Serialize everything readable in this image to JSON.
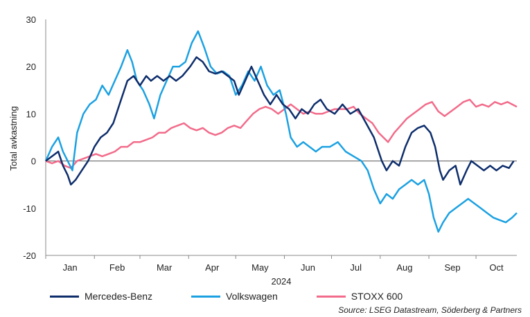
{
  "chart_data": {
    "type": "line",
    "ylabel": "Total avkastning",
    "xlabel": "2024",
    "ylim": [
      -20,
      30
    ],
    "yticks": [
      30,
      20,
      10,
      0,
      -10,
      -20
    ],
    "month_labels": [
      "Jan",
      "Feb",
      "Mar",
      "Apr",
      "May",
      "Jun",
      "Jul",
      "Aug",
      "Sep",
      "Oct"
    ],
    "grid": false,
    "legend_position": "bottom",
    "source": "Source: LSEG Datastream, Söderberg & Partners",
    "series": [
      {
        "name": "Mercedes-Benz",
        "color": "#0d2d6b",
        "points": [
          [
            "2024-01-01",
            0
          ],
          [
            "2024-01-05",
            1
          ],
          [
            "2024-01-09",
            2
          ],
          [
            "2024-01-12",
            -1
          ],
          [
            "2024-01-15",
            -3
          ],
          [
            "2024-01-17",
            -5
          ],
          [
            "2024-01-20",
            -4
          ],
          [
            "2024-01-24",
            -2
          ],
          [
            "2024-01-28",
            0
          ],
          [
            "2024-02-01",
            3
          ],
          [
            "2024-02-05",
            5
          ],
          [
            "2024-02-09",
            6
          ],
          [
            "2024-02-13",
            8
          ],
          [
            "2024-02-17",
            12
          ],
          [
            "2024-02-22",
            17
          ],
          [
            "2024-02-26",
            18
          ],
          [
            "2024-03-01",
            16
          ],
          [
            "2024-03-05",
            18
          ],
          [
            "2024-03-08",
            17
          ],
          [
            "2024-03-12",
            18
          ],
          [
            "2024-03-16",
            17
          ],
          [
            "2024-03-20",
            18
          ],
          [
            "2024-03-24",
            17
          ],
          [
            "2024-03-28",
            18
          ],
          [
            "2024-04-02",
            20
          ],
          [
            "2024-04-06",
            22
          ],
          [
            "2024-04-10",
            21
          ],
          [
            "2024-04-14",
            19
          ],
          [
            "2024-04-18",
            18.5
          ],
          [
            "2024-04-22",
            19
          ],
          [
            "2024-04-26",
            18
          ],
          [
            "2024-04-30",
            17
          ],
          [
            "2024-05-03",
            14
          ],
          [
            "2024-05-07",
            17
          ],
          [
            "2024-05-11",
            20
          ],
          [
            "2024-05-15",
            17
          ],
          [
            "2024-05-19",
            14
          ],
          [
            "2024-05-23",
            12
          ],
          [
            "2024-05-27",
            14
          ],
          [
            "2024-05-31",
            12
          ],
          [
            "2024-06-04",
            11
          ],
          [
            "2024-06-08",
            9
          ],
          [
            "2024-06-12",
            11
          ],
          [
            "2024-06-16",
            10
          ],
          [
            "2024-06-20",
            12
          ],
          [
            "2024-06-24",
            13
          ],
          [
            "2024-06-28",
            11
          ],
          [
            "2024-07-03",
            10
          ],
          [
            "2024-07-08",
            12
          ],
          [
            "2024-07-13",
            10
          ],
          [
            "2024-07-18",
            11
          ],
          [
            "2024-07-23",
            8
          ],
          [
            "2024-07-28",
            5
          ],
          [
            "2024-08-02",
            0
          ],
          [
            "2024-08-05",
            -2
          ],
          [
            "2024-08-09",
            0
          ],
          [
            "2024-08-13",
            -1
          ],
          [
            "2024-08-17",
            3
          ],
          [
            "2024-08-21",
            6
          ],
          [
            "2024-08-25",
            7
          ],
          [
            "2024-08-29",
            7.5
          ],
          [
            "2024-09-02",
            6
          ],
          [
            "2024-09-05",
            3
          ],
          [
            "2024-09-08",
            -2
          ],
          [
            "2024-09-10",
            -4
          ],
          [
            "2024-09-14",
            -2
          ],
          [
            "2024-09-18",
            -1
          ],
          [
            "2024-09-21",
            -5
          ],
          [
            "2024-09-25",
            -2
          ],
          [
            "2024-09-28",
            0
          ],
          [
            "2024-10-02",
            -1
          ],
          [
            "2024-10-06",
            -2
          ],
          [
            "2024-10-10",
            -1
          ],
          [
            "2024-10-14",
            -2
          ],
          [
            "2024-10-18",
            -1
          ],
          [
            "2024-10-22",
            -1.5
          ],
          [
            "2024-10-25",
            0
          ]
        ]
      },
      {
        "name": "Volkswagen",
        "color": "#1ba1e2",
        "points": [
          [
            "2024-01-01",
            0
          ],
          [
            "2024-01-05",
            3
          ],
          [
            "2024-01-09",
            5
          ],
          [
            "2024-01-12",
            2
          ],
          [
            "2024-01-15",
            0
          ],
          [
            "2024-01-18",
            -2
          ],
          [
            "2024-01-21",
            6
          ],
          [
            "2024-01-25",
            10
          ],
          [
            "2024-01-29",
            12
          ],
          [
            "2024-02-02",
            13
          ],
          [
            "2024-02-06",
            16
          ],
          [
            "2024-02-10",
            14
          ],
          [
            "2024-02-14",
            17
          ],
          [
            "2024-02-18",
            20
          ],
          [
            "2024-02-22",
            23.5
          ],
          [
            "2024-02-25",
            21
          ],
          [
            "2024-02-28",
            17
          ],
          [
            "2024-03-03",
            15
          ],
          [
            "2024-03-07",
            12
          ],
          [
            "2024-03-10",
            9
          ],
          [
            "2024-03-14",
            14
          ],
          [
            "2024-03-18",
            17
          ],
          [
            "2024-03-22",
            20
          ],
          [
            "2024-03-26",
            20
          ],
          [
            "2024-03-30",
            21
          ],
          [
            "2024-04-03",
            25
          ],
          [
            "2024-04-07",
            27.5
          ],
          [
            "2024-04-11",
            24
          ],
          [
            "2024-04-15",
            20
          ],
          [
            "2024-04-19",
            18.5
          ],
          [
            "2024-04-23",
            19
          ],
          [
            "2024-04-27",
            18
          ],
          [
            "2024-05-01",
            14
          ],
          [
            "2024-05-05",
            16
          ],
          [
            "2024-05-09",
            19
          ],
          [
            "2024-05-13",
            17
          ],
          [
            "2024-05-17",
            20
          ],
          [
            "2024-05-21",
            16
          ],
          [
            "2024-05-25",
            14
          ],
          [
            "2024-05-29",
            15
          ],
          [
            "2024-06-02",
            10
          ],
          [
            "2024-06-05",
            5
          ],
          [
            "2024-06-09",
            3
          ],
          [
            "2024-06-13",
            4
          ],
          [
            "2024-06-17",
            3
          ],
          [
            "2024-06-21",
            2
          ],
          [
            "2024-06-25",
            3
          ],
          [
            "2024-06-30",
            3
          ],
          [
            "2024-07-05",
            4
          ],
          [
            "2024-07-10",
            2
          ],
          [
            "2024-07-15",
            1
          ],
          [
            "2024-07-20",
            0
          ],
          [
            "2024-07-24",
            -2
          ],
          [
            "2024-07-28",
            -6
          ],
          [
            "2024-08-01",
            -9
          ],
          [
            "2024-08-05",
            -7
          ],
          [
            "2024-08-09",
            -8
          ],
          [
            "2024-08-13",
            -6
          ],
          [
            "2024-08-17",
            -5
          ],
          [
            "2024-08-21",
            -4
          ],
          [
            "2024-08-25",
            -5
          ],
          [
            "2024-08-29",
            -4
          ],
          [
            "2024-09-01",
            -7
          ],
          [
            "2024-09-04",
            -12
          ],
          [
            "2024-09-07",
            -15
          ],
          [
            "2024-09-10",
            -13
          ],
          [
            "2024-09-14",
            -11
          ],
          [
            "2024-09-18",
            -10
          ],
          [
            "2024-09-22",
            -9
          ],
          [
            "2024-09-26",
            -8
          ],
          [
            "2024-09-30",
            -9
          ],
          [
            "2024-10-04",
            -10
          ],
          [
            "2024-10-08",
            -11
          ],
          [
            "2024-10-12",
            -12
          ],
          [
            "2024-10-16",
            -12.5
          ],
          [
            "2024-10-20",
            -13
          ],
          [
            "2024-10-24",
            -12
          ],
          [
            "2024-10-27",
            -11
          ]
        ]
      },
      {
        "name": "STOXX 600",
        "color": "#f26b8a",
        "points": [
          [
            "2024-01-01",
            0
          ],
          [
            "2024-01-05",
            -0.5
          ],
          [
            "2024-01-09",
            0
          ],
          [
            "2024-01-13",
            -1
          ],
          [
            "2024-01-17",
            -1.5
          ],
          [
            "2024-01-21",
            0
          ],
          [
            "2024-01-25",
            0.5
          ],
          [
            "2024-01-29",
            1
          ],
          [
            "2024-02-02",
            1.5
          ],
          [
            "2024-02-06",
            1
          ],
          [
            "2024-02-10",
            1.5
          ],
          [
            "2024-02-14",
            2
          ],
          [
            "2024-02-18",
            3
          ],
          [
            "2024-02-22",
            3
          ],
          [
            "2024-02-26",
            4
          ],
          [
            "2024-03-01",
            4
          ],
          [
            "2024-03-05",
            4.5
          ],
          [
            "2024-03-09",
            5
          ],
          [
            "2024-03-13",
            6
          ],
          [
            "2024-03-17",
            6
          ],
          [
            "2024-03-21",
            7
          ],
          [
            "2024-03-25",
            7.5
          ],
          [
            "2024-03-29",
            8
          ],
          [
            "2024-04-02",
            7
          ],
          [
            "2024-04-06",
            6.5
          ],
          [
            "2024-04-10",
            7
          ],
          [
            "2024-04-14",
            6
          ],
          [
            "2024-04-18",
            5.5
          ],
          [
            "2024-04-22",
            6
          ],
          [
            "2024-04-26",
            7
          ],
          [
            "2024-04-30",
            7.5
          ],
          [
            "2024-05-04",
            7
          ],
          [
            "2024-05-08",
            8.5
          ],
          [
            "2024-05-12",
            10
          ],
          [
            "2024-05-16",
            11
          ],
          [
            "2024-05-20",
            11.5
          ],
          [
            "2024-05-24",
            11
          ],
          [
            "2024-05-28",
            10
          ],
          [
            "2024-06-01",
            11
          ],
          [
            "2024-06-05",
            12
          ],
          [
            "2024-06-09",
            11
          ],
          [
            "2024-06-13",
            10
          ],
          [
            "2024-06-17",
            10.5
          ],
          [
            "2024-06-21",
            10
          ],
          [
            "2024-06-25",
            10
          ],
          [
            "2024-06-29",
            10.5
          ],
          [
            "2024-07-03",
            11
          ],
          [
            "2024-07-07",
            11
          ],
          [
            "2024-07-11",
            11
          ],
          [
            "2024-07-15",
            11.5
          ],
          [
            "2024-07-19",
            10
          ],
          [
            "2024-07-23",
            9
          ],
          [
            "2024-07-27",
            8
          ],
          [
            "2024-07-31",
            6
          ],
          [
            "2024-08-03",
            5
          ],
          [
            "2024-08-06",
            4
          ],
          [
            "2024-08-10",
            6
          ],
          [
            "2024-08-14",
            7.5
          ],
          [
            "2024-08-18",
            9
          ],
          [
            "2024-08-22",
            10
          ],
          [
            "2024-08-26",
            11
          ],
          [
            "2024-08-30",
            12
          ],
          [
            "2024-09-03",
            12.5
          ],
          [
            "2024-09-07",
            10.5
          ],
          [
            "2024-09-11",
            9.5
          ],
          [
            "2024-09-15",
            10.5
          ],
          [
            "2024-09-19",
            11.5
          ],
          [
            "2024-09-23",
            12.5
          ],
          [
            "2024-09-27",
            13
          ],
          [
            "2024-10-01",
            11.5
          ],
          [
            "2024-10-05",
            12
          ],
          [
            "2024-10-09",
            11.5
          ],
          [
            "2024-10-13",
            12.5
          ],
          [
            "2024-10-17",
            12
          ],
          [
            "2024-10-21",
            12.5
          ],
          [
            "2024-10-27",
            11.5
          ]
        ]
      }
    ]
  }
}
